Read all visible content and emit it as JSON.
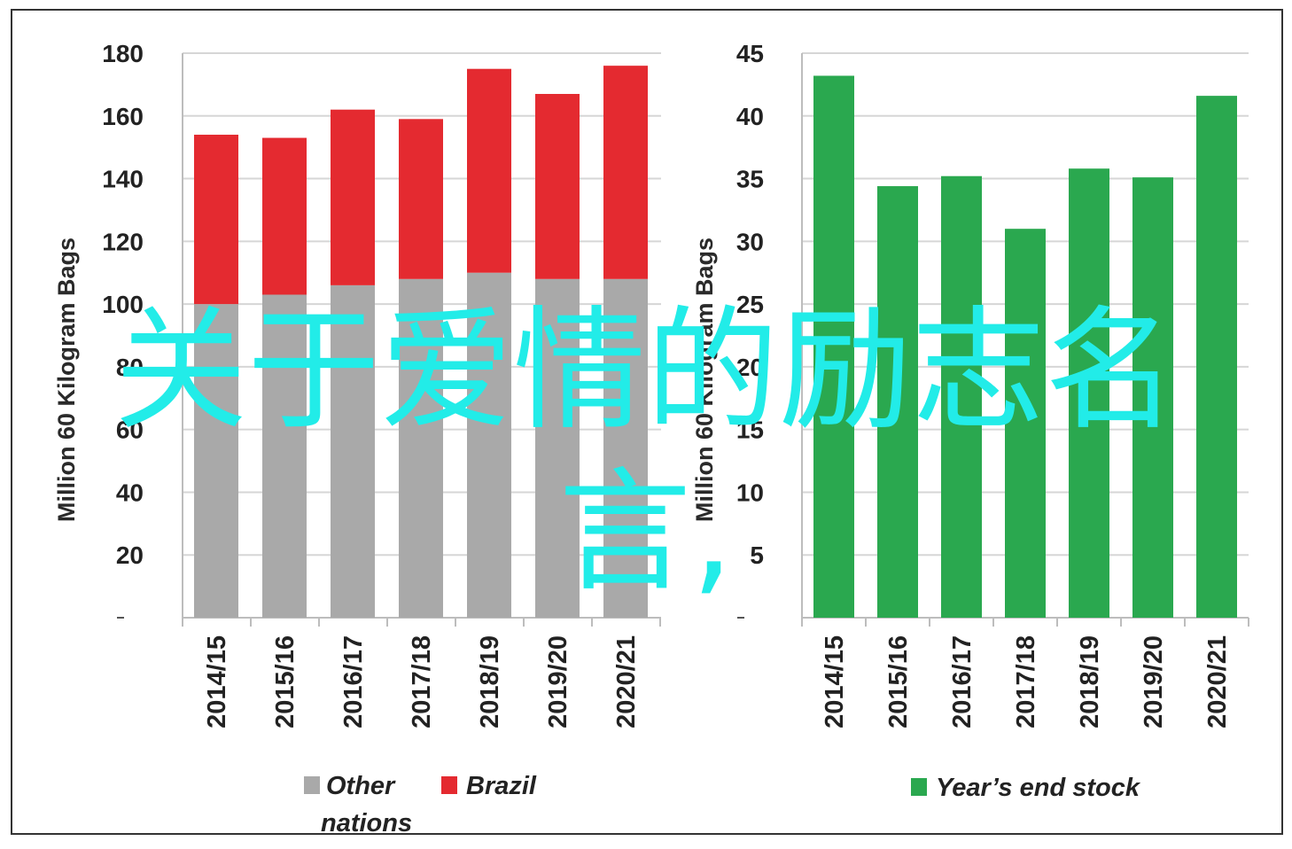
{
  "overlay_text_line1": "关于爱情的励志名",
  "overlay_text_line2": "言,",
  "colors": {
    "other_nations": "#a9a9a9",
    "brazil": "#e42a30",
    "stock": "#2aa84f",
    "grid": "#d6d6d6",
    "overlay": "#22ece8"
  },
  "chart_data": [
    {
      "type": "bar",
      "stacked": true,
      "categories": [
        "2014/15",
        "2015/16",
        "2016/17",
        "2017/18",
        "2018/19",
        "2019/20",
        "2020/21"
      ],
      "series": [
        {
          "name": "Other nations",
          "color": "#a9a9a9",
          "values": [
            100,
            103,
            106,
            108,
            110,
            108,
            108
          ]
        },
        {
          "name": "Brazil",
          "color": "#e42a30",
          "values": [
            54,
            50,
            56,
            51,
            65,
            59,
            68
          ]
        }
      ],
      "ylabel": "Million 60 Kilogram Bags",
      "ylim": [
        0,
        180
      ],
      "yticks": [
        20,
        40,
        60,
        80,
        100,
        120,
        140,
        160,
        180
      ],
      "grid": true,
      "legend_position": "bottom",
      "legend_lines": [
        [
          "Other",
          "nations"
        ],
        [
          "Brazil"
        ]
      ]
    },
    {
      "type": "bar",
      "categories": [
        "2014/15",
        "2015/16",
        "2016/17",
        "2017/18",
        "2018/19",
        "2019/20",
        "2020/21"
      ],
      "series": [
        {
          "name": "Year's end stock",
          "color": "#2aa84f",
          "values": [
            43.2,
            34.4,
            35.2,
            31,
            35.8,
            35.1,
            41.6
          ]
        }
      ],
      "ylabel": "Million 60 Kilogram Bags",
      "ylim": [
        0,
        45
      ],
      "yticks": [
        5,
        10,
        15,
        20,
        25,
        30,
        35,
        40,
        45
      ],
      "grid": true,
      "legend_position": "bottom",
      "legend_lines": [
        [
          "Year’s end stock"
        ]
      ]
    }
  ]
}
